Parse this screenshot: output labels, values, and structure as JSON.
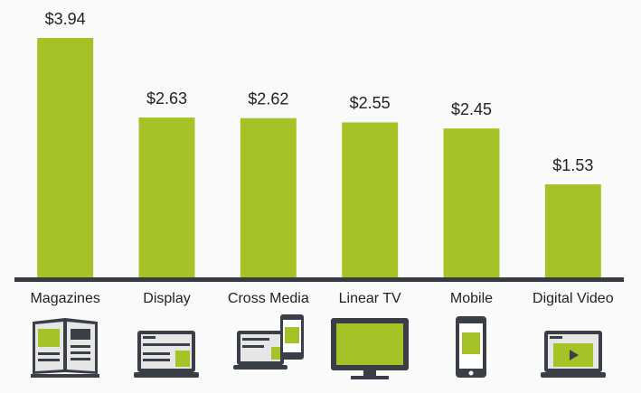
{
  "chart_data": {
    "type": "bar",
    "categories": [
      "Magazines",
      "Display",
      "Cross Media",
      "Linear TV",
      "Mobile",
      "Digital Video"
    ],
    "values": [
      3.94,
      2.63,
      2.62,
      2.55,
      2.45,
      1.53
    ],
    "value_labels": [
      "$3.94",
      "$2.63",
      "$2.62",
      "$2.55",
      "$2.45",
      "$1.53"
    ],
    "color": "#a5c226"
  }
}
